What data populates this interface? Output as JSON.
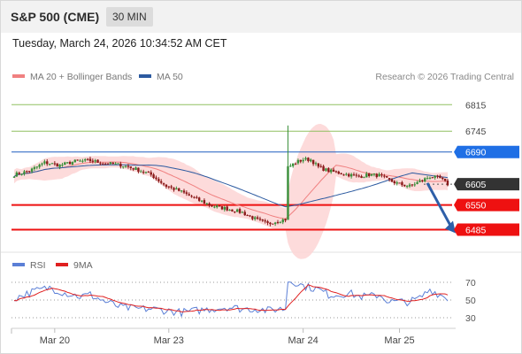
{
  "header": {
    "symbol": "S&P 500 (CME)",
    "interval": "30 MIN"
  },
  "timestamp": "Tuesday, March 24, 2026 10:34:52 AM CET",
  "legend": {
    "bollinger_label": "MA 20 + Bollinger Bands",
    "ma50_label": "MA 50",
    "copyright": "Research © 2026 Trading Central"
  },
  "rsi_legend": {
    "rsi_label": "RSI",
    "ma9_label": "9MA"
  },
  "colors": {
    "bollinger": "#f08080",
    "band_fill": "#fdd5d5",
    "ma50": "#2c5aa0",
    "candle_up": "#3a8f3a",
    "candle_down": "#8b1a1a",
    "resistance_line": "#90c060",
    "pivot_line": "#1f5fbf",
    "support_line": "#ee1111",
    "current_price_bg": "#333333",
    "pivot_bg": "#1f6fe5",
    "support_bg": "#ee1111",
    "arrow": "#2e5fa8",
    "rsi": "#5b7fd6",
    "rsi_ma": "#e02020"
  },
  "chart_data": [
    {
      "type": "candlestick",
      "title": "S&P 500 (CME) 30 MIN",
      "ylim": [
        6430,
        6860
      ],
      "x_ticks": [
        "Mar 20",
        "Mar 23",
        "Mar 24",
        "Mar 25"
      ],
      "levels": [
        {
          "value": 6815,
          "label": "6815",
          "kind": "resistance"
        },
        {
          "value": 6745,
          "label": "6745",
          "kind": "resistance"
        },
        {
          "value": 6690,
          "label": "6690",
          "kind": "pivot"
        },
        {
          "value": 6605,
          "label": "6605",
          "kind": "current"
        },
        {
          "value": 6550,
          "label": "6550",
          "kind": "support"
        },
        {
          "value": 6485,
          "label": "6485",
          "kind": "support"
        }
      ],
      "anchors": [
        [
          0,
          6630
        ],
        [
          6,
          6640
        ],
        [
          12,
          6662
        ],
        [
          18,
          6655
        ],
        [
          24,
          6665
        ],
        [
          30,
          6667
        ],
        [
          36,
          6660
        ],
        [
          42,
          6656
        ],
        [
          48,
          6645
        ],
        [
          54,
          6630
        ],
        [
          60,
          6600
        ],
        [
          66,
          6585
        ],
        [
          72,
          6565
        ],
        [
          78,
          6548
        ],
        [
          84,
          6540
        ],
        [
          90,
          6530
        ],
        [
          96,
          6510
        ],
        [
          100,
          6500
        ],
        [
          104,
          6508
        ],
        [
          107,
          6512
        ],
        [
          108,
          6650
        ],
        [
          111,
          6662
        ],
        [
          114,
          6670
        ],
        [
          117,
          6670
        ],
        [
          120,
          6650
        ],
        [
          124,
          6640
        ],
        [
          128,
          6635
        ],
        [
          132,
          6630
        ],
        [
          136,
          6625
        ],
        [
          140,
          6630
        ],
        [
          144,
          6628
        ],
        [
          148,
          6615
        ],
        [
          152,
          6605
        ],
        [
          156,
          6600
        ],
        [
          160,
          6612
        ],
        [
          164,
          6625
        ],
        [
          168,
          6620
        ],
        [
          171,
          6605
        ]
      ],
      "spikes": [
        {
          "index": 108,
          "high": 6760,
          "low": 6515
        }
      ],
      "series": [
        {
          "name": "MA 20 + Bollinger Bands"
        },
        {
          "name": "MA 50"
        }
      ]
    },
    {
      "type": "line",
      "title": "RSI",
      "ylim": [
        20,
        80
      ],
      "y_ticks": [
        70,
        50,
        30
      ],
      "series": [
        {
          "name": "RSI"
        },
        {
          "name": "9MA"
        }
      ],
      "rsi_anchors": [
        [
          0,
          52
        ],
        [
          8,
          60
        ],
        [
          14,
          64
        ],
        [
          20,
          58
        ],
        [
          26,
          54
        ],
        [
          30,
          56
        ],
        [
          36,
          48
        ],
        [
          42,
          42
        ],
        [
          48,
          40
        ],
        [
          54,
          40
        ],
        [
          60,
          38
        ],
        [
          66,
          36
        ],
        [
          72,
          38
        ],
        [
          78,
          40
        ],
        [
          84,
          42
        ],
        [
          90,
          40
        ],
        [
          96,
          40
        ],
        [
          100,
          38
        ],
        [
          104,
          40
        ],
        [
          107,
          40
        ],
        [
          108,
          72
        ],
        [
          111,
          70
        ],
        [
          114,
          66
        ],
        [
          117,
          64
        ],
        [
          120,
          62
        ],
        [
          124,
          56
        ],
        [
          128,
          56
        ],
        [
          132,
          58
        ],
        [
          136,
          54
        ],
        [
          140,
          54
        ],
        [
          144,
          56
        ],
        [
          148,
          48
        ],
        [
          152,
          48
        ],
        [
          156,
          48
        ],
        [
          160,
          52
        ],
        [
          164,
          62
        ],
        [
          168,
          56
        ],
        [
          171,
          52
        ]
      ]
    }
  ]
}
